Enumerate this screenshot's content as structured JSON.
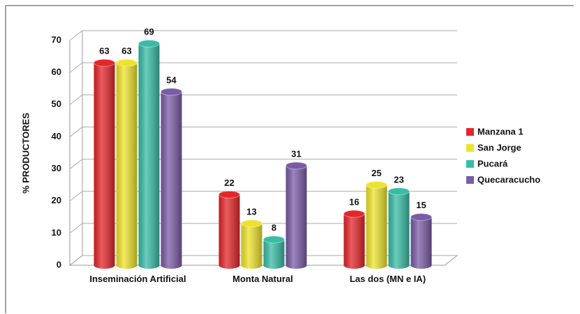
{
  "chart_data": {
    "type": "bar",
    "ylabel": "% PRODUCTORES",
    "categories": [
      "Inseminación Artificial",
      "Monta Natural",
      "Las dos (MN e IA)"
    ],
    "series": [
      {
        "name": "Manzana 1",
        "color": "#e4262b",
        "values": [
          63,
          22,
          16
        ]
      },
      {
        "name": "San Jorge",
        "color": "#eee32c",
        "values": [
          63,
          13,
          25
        ]
      },
      {
        "name": "Pucará",
        "color": "#38bca6",
        "values": [
          69,
          8,
          23
        ]
      },
      {
        "name": "Quecaracucho",
        "color": "#7a5ca6",
        "values": [
          54,
          31,
          15
        ]
      }
    ],
    "ylim": [
      0,
      70
    ],
    "yticks": [
      0,
      10,
      20,
      30,
      40,
      50,
      60,
      70
    ],
    "grid": true,
    "legend": "right"
  }
}
